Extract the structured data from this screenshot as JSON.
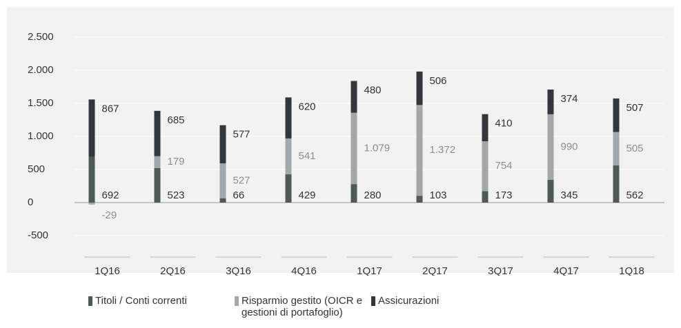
{
  "chart_data": {
    "type": "stacked_bar",
    "categories": [
      "1Q16",
      "2Q16",
      "3Q16",
      "4Q16",
      "1Q17",
      "2Q17",
      "3Q17",
      "4Q17",
      "1Q18"
    ],
    "series": [
      {
        "name": "Titoli / Conti correnti",
        "color": "#4d5a56",
        "values": [
          692,
          523,
          66,
          429,
          280,
          103,
          173,
          345,
          562
        ]
      },
      {
        "name": "Risparmio gestito (OICR e gestioni di portafoglio)",
        "color": "#a3a7a9",
        "values": [
          -29,
          179,
          527,
          541,
          1079,
          1372,
          754,
          990,
          505
        ],
        "value_labels": [
          "-29",
          "179",
          "527",
          "541",
          "1.079",
          "1.372",
          "754",
          "990",
          "505"
        ]
      },
      {
        "name": "Assicurazioni",
        "color": "#33373b",
        "values": [
          867,
          685,
          577,
          620,
          480,
          506,
          410,
          374,
          507
        ]
      }
    ],
    "ylim": [
      -500,
      2500
    ],
    "yticks": [
      -500,
      0,
      500,
      {
        "value": 1000,
        "label": "1.000"
      },
      {
        "value": 1500,
        "label": "1.500"
      },
      {
        "value": 2000,
        "label": "2.000"
      },
      {
        "value": 2500,
        "label": "2.500"
      }
    ],
    "grid": true
  }
}
